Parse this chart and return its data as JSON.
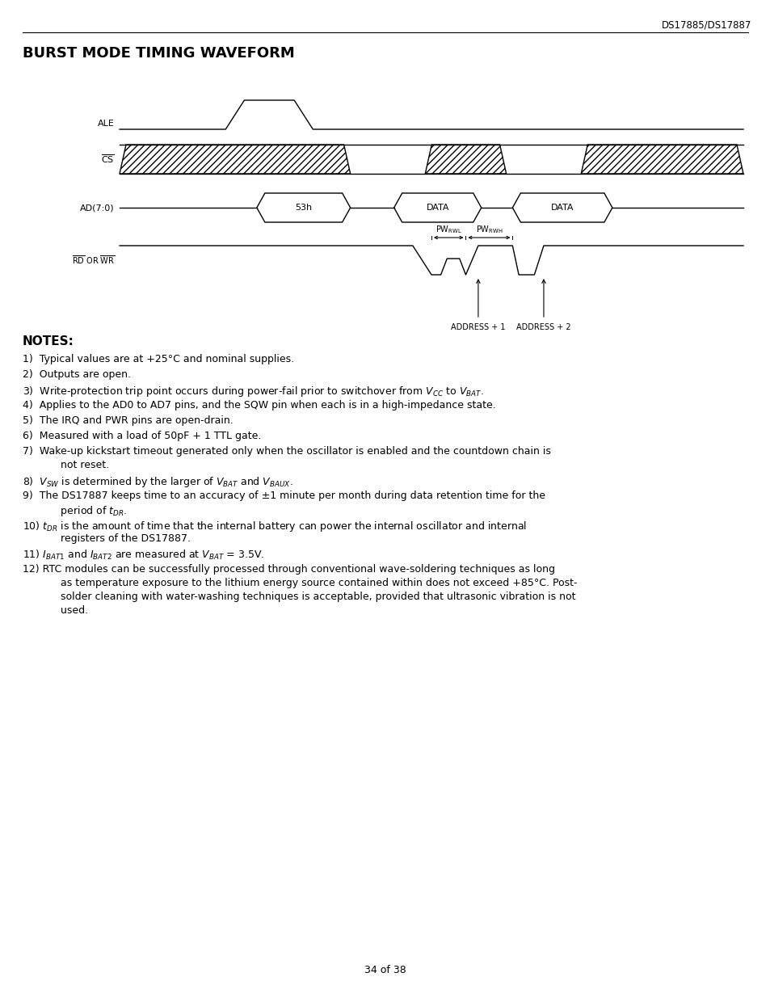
{
  "title": "BURST MODE TIMING WAVEFORM",
  "header_text": "DS17885/DS17887",
  "page_footer": "34 of 38",
  "bg_color": "#ffffff",
  "line_color": "#000000"
}
